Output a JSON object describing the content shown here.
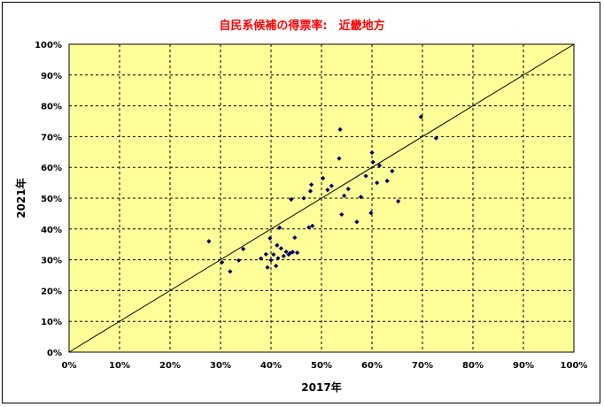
{
  "chart_data": {
    "type": "scatter",
    "title": "自民系候補の得票率:　近畿地方",
    "xlabel": "2017年",
    "ylabel": "2021年",
    "xlim": [
      0,
      1
    ],
    "ylim": [
      0,
      1
    ],
    "x_ticks": [
      "0%",
      "10%",
      "20%",
      "30%",
      "40%",
      "50%",
      "60%",
      "70%",
      "80%",
      "90%",
      "100%"
    ],
    "y_ticks": [
      "0%",
      "10%",
      "20%",
      "30%",
      "40%",
      "50%",
      "60%",
      "70%",
      "80%",
      "90%",
      "100%"
    ],
    "grid": true,
    "reference_line": {
      "from": [
        0,
        0
      ],
      "to": [
        1,
        1
      ]
    },
    "colors": {
      "plot_bg": "#ffff99",
      "marker": "#000066",
      "grid": "#000000",
      "title": "#ff0000"
    },
    "points": [
      {
        "x": 0.277,
        "y": 0.36
      },
      {
        "x": 0.303,
        "y": 0.292
      },
      {
        "x": 0.319,
        "y": 0.262
      },
      {
        "x": 0.336,
        "y": 0.298
      },
      {
        "x": 0.345,
        "y": 0.335
      },
      {
        "x": 0.38,
        "y": 0.304
      },
      {
        "x": 0.39,
        "y": 0.318
      },
      {
        "x": 0.393,
        "y": 0.275
      },
      {
        "x": 0.398,
        "y": 0.37
      },
      {
        "x": 0.4,
        "y": 0.299
      },
      {
        "x": 0.405,
        "y": 0.317
      },
      {
        "x": 0.41,
        "y": 0.28
      },
      {
        "x": 0.412,
        "y": 0.347
      },
      {
        "x": 0.414,
        "y": 0.305
      },
      {
        "x": 0.417,
        "y": 0.404
      },
      {
        "x": 0.42,
        "y": 0.337
      },
      {
        "x": 0.425,
        "y": 0.312
      },
      {
        "x": 0.43,
        "y": 0.326
      },
      {
        "x": 0.435,
        "y": 0.317
      },
      {
        "x": 0.438,
        "y": 0.322
      },
      {
        "x": 0.44,
        "y": 0.496
      },
      {
        "x": 0.443,
        "y": 0.325
      },
      {
        "x": 0.447,
        "y": 0.372
      },
      {
        "x": 0.452,
        "y": 0.323
      },
      {
        "x": 0.465,
        "y": 0.5
      },
      {
        "x": 0.475,
        "y": 0.405
      },
      {
        "x": 0.478,
        "y": 0.523
      },
      {
        "x": 0.48,
        "y": 0.544
      },
      {
        "x": 0.482,
        "y": 0.41
      },
      {
        "x": 0.503,
        "y": 0.565
      },
      {
        "x": 0.512,
        "y": 0.527
      },
      {
        "x": 0.52,
        "y": 0.54
      },
      {
        "x": 0.535,
        "y": 0.629
      },
      {
        "x": 0.537,
        "y": 0.723
      },
      {
        "x": 0.54,
        "y": 0.447
      },
      {
        "x": 0.545,
        "y": 0.508
      },
      {
        "x": 0.553,
        "y": 0.53
      },
      {
        "x": 0.57,
        "y": 0.423
      },
      {
        "x": 0.578,
        "y": 0.504
      },
      {
        "x": 0.588,
        "y": 0.572
      },
      {
        "x": 0.598,
        "y": 0.452
      },
      {
        "x": 0.6,
        "y": 0.648
      },
      {
        "x": 0.602,
        "y": 0.617
      },
      {
        "x": 0.61,
        "y": 0.55
      },
      {
        "x": 0.615,
        "y": 0.606
      },
      {
        "x": 0.63,
        "y": 0.556
      },
      {
        "x": 0.64,
        "y": 0.588
      },
      {
        "x": 0.652,
        "y": 0.49
      },
      {
        "x": 0.697,
        "y": 0.764
      },
      {
        "x": 0.727,
        "y": 0.695
      }
    ]
  }
}
